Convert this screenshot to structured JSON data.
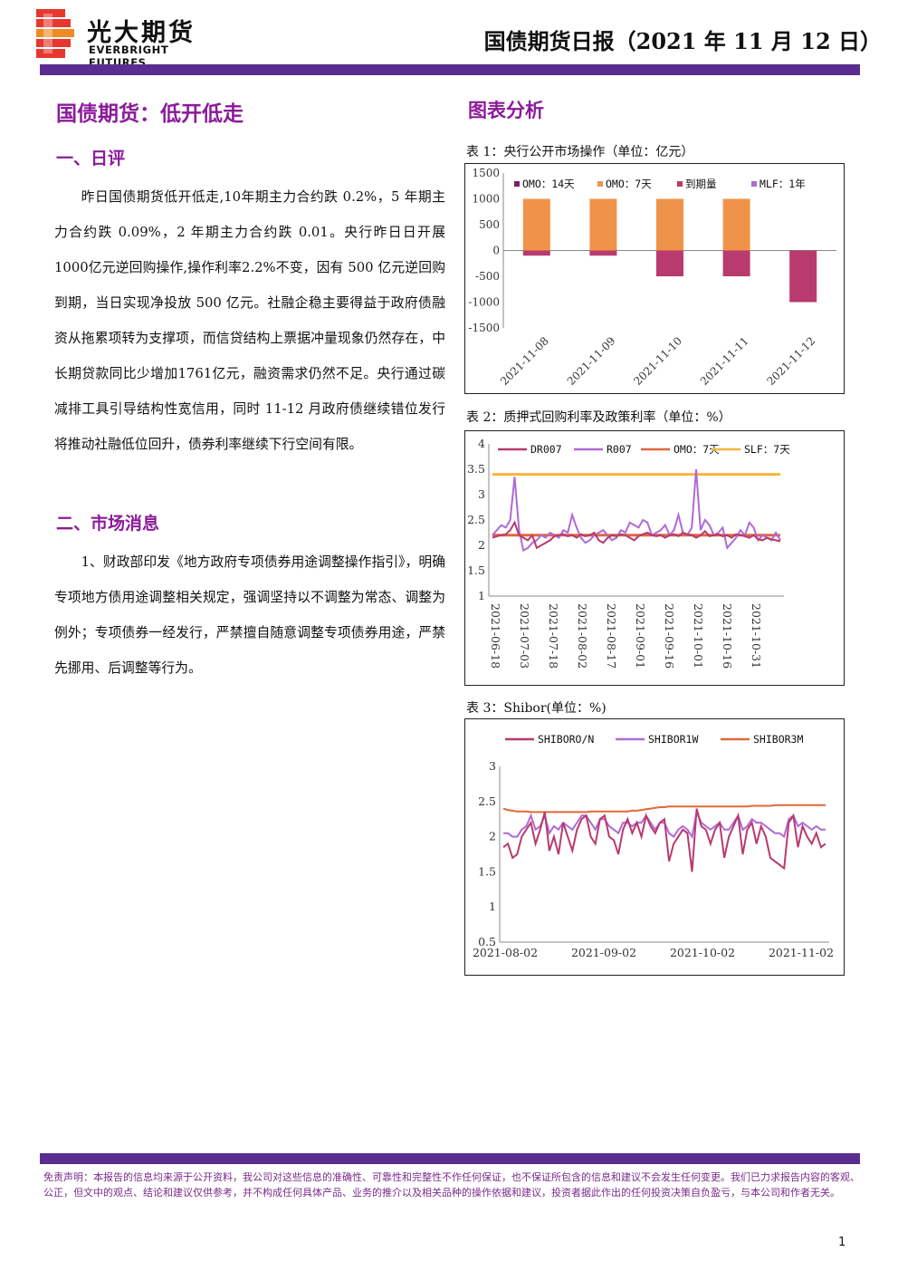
{
  "header": {
    "logo_cn": "光大期货",
    "logo_en": "EVERBRIGHT FUTURES",
    "report_title": "国债期货日报（2021 年 11 月 12 日）",
    "bar_color": "#5a2d91"
  },
  "left": {
    "main_heading": "国债期货：低开低走",
    "section1_title": "一、日评",
    "section1_text": "昨日国债期货低开低走,10年期主力合约跌 0.2%，5 年期主力合约跌 0.09%，2 年期主力合约跌 0.01。央行昨日日开展1000亿元逆回购操作,操作利率2.2%不变，因有 500 亿元逆回购到期，当日实现净投放 500 亿元。社融企稳主要得益于政府债融资从拖累项转为支撑项，而信贷结构上票据冲量现象仍然存在，中长期贷款同比少增加1761亿元，融资需求仍然不足。央行通过碳减排工具引导结构性宽信用，同时 11-12 月政府债继续错位发行将推动社融低位回升，债券利率继续下行空间有限。",
    "section2_title": "二、市场消息",
    "section2_text": "1、财政部印发《地方政府专项债券用途调整操作指引》，明确专项地方债用途调整相关规定，强调坚持以不调整为常态、调整为例外；专项债券一经发行，严禁擅自随意调整专项债券用途，严禁先挪用、后调整等行为。"
  },
  "right": {
    "heading": "图表分析",
    "chart1_caption": "表 1：央行公开市场操作（单位：亿元）",
    "chart2_caption": "表 2：质押式回购利率及政策利率（单位：%）",
    "chart3_caption": "表 3：Shibor(单位：%)"
  },
  "chart_data": [
    {
      "type": "bar",
      "categories": [
        "2021-11-08",
        "2021-11-09",
        "2021-11-10",
        "2021-11-11",
        "2021-11-12"
      ],
      "series": [
        {
          "name": "OMO：14天",
          "color": "#7a1f6e",
          "values": [
            0,
            0,
            0,
            0,
            0
          ]
        },
        {
          "name": "OMO：7天",
          "color": "#f0934a",
          "values": [
            1000,
            1000,
            1000,
            1000,
            0
          ]
        },
        {
          "name": "到期量",
          "color": "#b83a6e",
          "values": [
            -100,
            -100,
            -500,
            -500,
            -1000
          ]
        },
        {
          "name": "MLF：1年",
          "color": "#b06ad4",
          "values": [
            0,
            0,
            0,
            0,
            0
          ]
        }
      ],
      "yticks": [
        "1500",
        "1000",
        "500",
        "0",
        "-500",
        "-1000",
        "-1500"
      ],
      "ylim": [
        -1500,
        1500
      ]
    },
    {
      "type": "line",
      "x_ticks": [
        "2021-06-18",
        "2021-07-03",
        "2021-07-18",
        "2021-08-02",
        "2021-08-17",
        "2021-09-01",
        "2021-09-16",
        "2021-10-01",
        "2021-10-16",
        "2021-10-31"
      ],
      "yticks": [
        "4",
        "3.5",
        "3",
        "2.5",
        "2",
        "1.5",
        "1"
      ],
      "ylim": [
        1,
        4
      ],
      "series": [
        {
          "name": "DR007",
          "color": "#b83a6e",
          "values": [
            2.15,
            2.18,
            2.2,
            2.22,
            2.3,
            2.45,
            2.2,
            2.15,
            2.1,
            2.2,
            1.95,
            2.0,
            2.05,
            2.1,
            2.18,
            2.2,
            2.22,
            2.18,
            2.2,
            2.15,
            2.22,
            2.18,
            2.2,
            2.25,
            2.1,
            2.05,
            2.15,
            2.2,
            2.18,
            2.22,
            2.2,
            2.15,
            2.1,
            2.18,
            2.22,
            2.25,
            2.2,
            2.18,
            2.2,
            2.15,
            2.2,
            2.22,
            2.18,
            2.25,
            2.22,
            2.2,
            2.15,
            2.2,
            2.28,
            2.18,
            2.2,
            2.22,
            2.18,
            2.2,
            2.15,
            2.22,
            2.2,
            2.18,
            2.15,
            2.2,
            2.12,
            2.1,
            2.15,
            2.12,
            2.1,
            2.08
          ]
        },
        {
          "name": "R007",
          "color": "#b06ad4",
          "values": [
            2.2,
            2.3,
            2.4,
            2.35,
            2.5,
            3.35,
            2.3,
            1.9,
            1.95,
            2.05,
            2.1,
            2.2,
            2.15,
            2.25,
            2.2,
            2.15,
            2.3,
            2.25,
            2.6,
            2.35,
            2.15,
            2.05,
            2.1,
            2.2,
            2.25,
            2.3,
            2.2,
            2.1,
            2.15,
            2.3,
            2.25,
            2.45,
            2.4,
            2.35,
            2.5,
            2.45,
            2.2,
            2.25,
            2.3,
            2.4,
            2.2,
            2.3,
            2.6,
            2.25,
            2.2,
            2.35,
            3.5,
            2.3,
            2.5,
            2.4,
            2.2,
            2.25,
            2.35,
            1.95,
            2.05,
            2.15,
            2.3,
            2.2,
            2.45,
            2.35,
            2.1,
            2.2,
            2.15,
            2.1,
            2.25,
            2.1
          ]
        },
        {
          "name": "OMO：7天",
          "color": "#e0683a",
          "values": [
            2.2,
            2.2,
            2.2,
            2.2,
            2.2,
            2.2,
            2.2,
            2.2,
            2.2,
            2.2,
            2.2,
            2.2,
            2.2,
            2.2,
            2.2,
            2.2,
            2.2,
            2.2,
            2.2,
            2.2,
            2.2,
            2.2,
            2.2,
            2.2,
            2.2,
            2.2,
            2.2,
            2.2,
            2.2,
            2.2,
            2.2,
            2.2,
            2.2,
            2.2,
            2.2,
            2.2,
            2.2,
            2.2,
            2.2,
            2.2,
            2.2,
            2.2,
            2.2,
            2.2,
            2.2,
            2.2,
            2.2,
            2.2,
            2.2,
            2.2,
            2.2,
            2.2,
            2.2,
            2.2,
            2.2,
            2.2,
            2.2,
            2.2,
            2.2,
            2.2,
            2.2,
            2.2,
            2.2,
            2.2,
            2.2,
            2.2
          ]
        },
        {
          "name": "SLF：7天",
          "color": "#f5b53a",
          "values": [
            3.4,
            3.4,
            3.4,
            3.4,
            3.4,
            3.4,
            3.4,
            3.4,
            3.4,
            3.4,
            3.4,
            3.4,
            3.4,
            3.4,
            3.4,
            3.4,
            3.4,
            3.4,
            3.4,
            3.4,
            3.4,
            3.4,
            3.4,
            3.4,
            3.4,
            3.4,
            3.4,
            3.4,
            3.4,
            3.4,
            3.4,
            3.4,
            3.4,
            3.4,
            3.4,
            3.4,
            3.4,
            3.4,
            3.4,
            3.4,
            3.4,
            3.4,
            3.4,
            3.4,
            3.4,
            3.4,
            3.4,
            3.4,
            3.4,
            3.4,
            3.4,
            3.4,
            3.4,
            3.4,
            3.4,
            3.4,
            3.4,
            3.4,
            3.4,
            3.4,
            3.4,
            3.4,
            3.4,
            3.4,
            3.4,
            3.4
          ]
        }
      ]
    },
    {
      "type": "line",
      "x_ticks": [
        "2021-08-02",
        "2021-09-02",
        "2021-10-02",
        "2021-11-02"
      ],
      "yticks": [
        "3",
        "2.5",
        "2",
        "1.5",
        "1",
        "0.5"
      ],
      "ylim": [
        0.5,
        3
      ],
      "series": [
        {
          "name": "SHIBORO/N",
          "color": "#b83a6e",
          "values": [
            1.85,
            1.9,
            1.7,
            1.75,
            2.0,
            2.1,
            2.2,
            1.9,
            2.1,
            2.35,
            1.8,
            2.0,
            1.75,
            2.2,
            2.0,
            1.8,
            2.1,
            2.25,
            2.3,
            2.0,
            1.9,
            2.25,
            2.3,
            2.0,
            1.95,
            1.75,
            2.1,
            2.25,
            2.05,
            2.2,
            2.0,
            2.3,
            2.15,
            2.05,
            2.2,
            2.25,
            1.65,
            1.9,
            2.0,
            2.1,
            2.05,
            1.5,
            2.4,
            2.15,
            2.1,
            1.9,
            2.1,
            2.2,
            1.7,
            2.0,
            2.15,
            2.3,
            1.75,
            2.1,
            2.2,
            1.9,
            2.15,
            2.0,
            1.7,
            1.65,
            1.6,
            1.55,
            2.2,
            2.3,
            1.85,
            2.15,
            2.0,
            1.9,
            2.05,
            1.85,
            1.9
          ]
        },
        {
          "name": "SHIBOR1W",
          "color": "#b06ad4",
          "values": [
            2.05,
            2.05,
            2.0,
            2.0,
            2.1,
            2.15,
            2.3,
            2.1,
            2.15,
            2.3,
            2.05,
            2.15,
            2.1,
            2.2,
            2.15,
            2.1,
            2.2,
            2.3,
            2.3,
            2.2,
            2.1,
            2.25,
            2.25,
            2.15,
            2.1,
            2.05,
            2.2,
            2.2,
            2.15,
            2.2,
            2.2,
            2.3,
            2.2,
            2.1,
            2.2,
            2.2,
            2.05,
            2.0,
            2.1,
            2.15,
            2.1,
            2.0,
            2.35,
            2.2,
            2.15,
            2.1,
            2.15,
            2.2,
            2.1,
            2.1,
            2.2,
            2.3,
            2.1,
            2.15,
            2.25,
            2.2,
            2.2,
            2.15,
            2.1,
            2.05,
            2.05,
            2.0,
            2.25,
            2.3,
            2.15,
            2.2,
            2.15,
            2.1,
            2.15,
            2.1,
            2.1
          ]
        },
        {
          "name": "SHIBOR3M",
          "color": "#e0683a",
          "values": [
            2.4,
            2.38,
            2.37,
            2.36,
            2.36,
            2.36,
            2.35,
            2.35,
            2.35,
            2.35,
            2.35,
            2.35,
            2.35,
            2.35,
            2.35,
            2.35,
            2.35,
            2.35,
            2.35,
            2.36,
            2.36,
            2.36,
            2.36,
            2.36,
            2.36,
            2.36,
            2.36,
            2.36,
            2.37,
            2.37,
            2.38,
            2.39,
            2.4,
            2.41,
            2.42,
            2.42,
            2.43,
            2.43,
            2.43,
            2.43,
            2.43,
            2.43,
            2.43,
            2.43,
            2.43,
            2.43,
            2.43,
            2.43,
            2.43,
            2.43,
            2.43,
            2.43,
            2.43,
            2.43,
            2.44,
            2.44,
            2.44,
            2.44,
            2.44,
            2.45,
            2.45,
            2.45,
            2.45,
            2.45,
            2.45,
            2.45,
            2.45,
            2.45,
            2.45,
            2.45,
            2.45
          ]
        }
      ]
    }
  ],
  "footer": {
    "disclaimer": "免责声明：本报告的信息均来源于公开资料，我公司对这些信息的准确性、可靠性和完整性不作任何保证，也不保证所包含的信息和建议不会发生任何变更。我们已力求报告内容的客观、公正，但文中的观点、结论和建议仅供参考，并不构成任何具体产品、业务的推介以及相关品种的操作依据和建议，投资者据此作出的任何投资决策自负盈亏，与本公司和作者无关。",
    "page_number": "1"
  }
}
